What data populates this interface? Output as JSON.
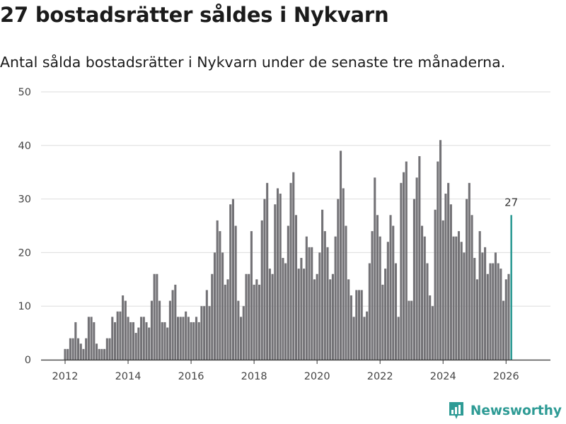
{
  "header": {
    "title": "27 bostadsrätter såldes i Nykvarn",
    "subtitle": "Antal sålda bostadsrätter i Nykvarn under de senaste tre månaderna."
  },
  "brand": {
    "name": "Newsworthy"
  },
  "colors": {
    "bar": "#737276",
    "highlight": "#2e9b95",
    "grid": "#dddddd",
    "axis": "#333333"
  },
  "chart_data": {
    "type": "bar",
    "title": "27 bostadsrätter såldes i Nykvarn",
    "xlabel": "",
    "ylabel": "",
    "ylim": [
      0,
      50
    ],
    "yticks": [
      0,
      10,
      20,
      30,
      40,
      50
    ],
    "xticks": [
      "2012",
      "2014",
      "2016",
      "2018",
      "2020",
      "2022",
      "2024",
      "2026"
    ],
    "start": "2012-01",
    "values": [
      2,
      2,
      4,
      4,
      7,
      4,
      3,
      2,
      4,
      8,
      8,
      7,
      3,
      2,
      2,
      2,
      4,
      4,
      8,
      7,
      9,
      9,
      12,
      11,
      8,
      7,
      7,
      5,
      6,
      8,
      8,
      7,
      6,
      11,
      16,
      16,
      11,
      7,
      7,
      6,
      11,
      13,
      14,
      8,
      8,
      8,
      9,
      8,
      7,
      7,
      8,
      7,
      10,
      10,
      13,
      10,
      16,
      20,
      26,
      24,
      20,
      14,
      15,
      29,
      30,
      25,
      11,
      8,
      10,
      16,
      16,
      24,
      14,
      15,
      14,
      26,
      30,
      33,
      17,
      16,
      29,
      32,
      31,
      19,
      18,
      25,
      33,
      35,
      27,
      17,
      19,
      17,
      23,
      21,
      21,
      15,
      16,
      20,
      28,
      24,
      21,
      15,
      16,
      23,
      30,
      39,
      32,
      25,
      15,
      12,
      8,
      13,
      13,
      13,
      8,
      9,
      18,
      24,
      34,
      27,
      23,
      14,
      17,
      22,
      27,
      25,
      18,
      8,
      33,
      35,
      37,
      11,
      11,
      30,
      34,
      38,
      25,
      23,
      18,
      12,
      10,
      28,
      37,
      41,
      26,
      31,
      33,
      29,
      23,
      23,
      24,
      22,
      20,
      30,
      33,
      27,
      19,
      15,
      24,
      20,
      21,
      16,
      18,
      18,
      20,
      18,
      17,
      11,
      15,
      16,
      27
    ],
    "highlight": {
      "label": "27",
      "value": 27,
      "index": 170
    }
  }
}
